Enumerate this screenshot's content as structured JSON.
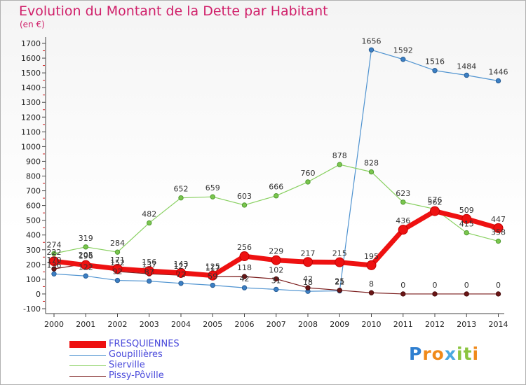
{
  "title": "Evolution du Montant de la Dette par Habitant",
  "subtitle": "(en €)",
  "logo": "Proxiti",
  "chart_data": {
    "type": "line",
    "title": "Evolution du Montant de la Dette par Habitant",
    "ylabel": "(en €)",
    "xlabel": "",
    "ylim": [
      -100,
      1700
    ],
    "yticks": [
      -100,
      0,
      100,
      200,
      300,
      400,
      500,
      600,
      700,
      800,
      900,
      1000,
      1100,
      1200,
      1300,
      1400,
      1500,
      1600,
      1700
    ],
    "categories": [
      "2000",
      "2001",
      "2002",
      "2003",
      "2004",
      "2005",
      "2006",
      "2007",
      "2008",
      "2009",
      "2010",
      "2011",
      "2012",
      "2013",
      "2014"
    ],
    "grid": false,
    "legend": "bottom-left",
    "series": [
      {
        "name": "FRESQUIENNES",
        "color": "#ee1111",
        "values": [
          222,
          196,
          171,
          156,
          143,
          125,
          256,
          229,
          217,
          215,
          195,
          436,
          562,
          509,
          447
        ]
      },
      {
        "name": "Goupillières",
        "color": "#4f93d0",
        "values": [
          136,
          122,
          92,
          87,
          72,
          59,
          42,
          31,
          18,
          21,
          1656,
          1592,
          1516,
          1484,
          1446
        ]
      },
      {
        "name": "Sierville",
        "color": "#88d060",
        "values": [
          274,
          319,
          284,
          482,
          652,
          659,
          603,
          666,
          760,
          878,
          828,
          623,
          576,
          415,
          358
        ]
      },
      {
        "name": "Pissy-Pôville",
        "color": "#7a1c1c",
        "values": [
          170,
          205,
          152,
          137,
          127,
          117,
          118,
          102,
          42,
          25,
          8,
          0,
          0,
          0,
          0
        ]
      }
    ],
    "data_labels": [
      {
        "series": 0,
        "values": [
          "222",
          "196",
          "171",
          "156",
          "143",
          "125",
          "256",
          "229",
          "217",
          "215",
          "195",
          "436",
          "562",
          "509",
          "447"
        ]
      },
      {
        "series": 1,
        "values": [
          "136",
          "122",
          "92",
          "87",
          "72",
          "59",
          "42",
          "31",
          "18",
          "21",
          "1656",
          "1592",
          "1516",
          "1484",
          "1446"
        ]
      },
      {
        "series": 2,
        "values": [
          "274",
          "319",
          "284",
          "482",
          "652",
          "659",
          "603",
          "666",
          "760",
          "878",
          "828",
          "623",
          "576",
          "415",
          "358"
        ]
      },
      {
        "series": 3,
        "values": [
          "170",
          "205",
          "152",
          "137",
          "127",
          "117",
          "118",
          "102",
          "42",
          "25",
          "8",
          "0",
          "0",
          "0",
          "0"
        ]
      }
    ]
  }
}
